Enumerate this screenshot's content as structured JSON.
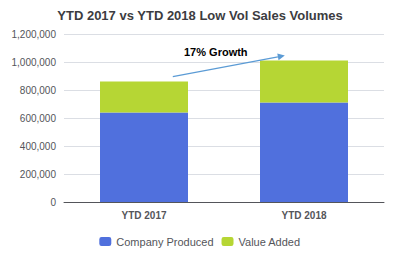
{
  "chart_data": {
    "type": "bar",
    "title": "YTD 2017 vs YTD 2018 Low Vol Sales Volumes",
    "categories": [
      "YTD 2017",
      "YTD 2018"
    ],
    "series": [
      {
        "name": "Company Produced",
        "values": [
          640000,
          710000
        ]
      },
      {
        "name": "Value Added",
        "values": [
          220000,
          300000
        ]
      }
    ],
    "stacked": true,
    "ylim": [
      0,
      1200000
    ],
    "yticks": [
      0,
      {
        "value": 200000,
        "label": "200,000"
      },
      {
        "value": 400000,
        "label": "400,000"
      },
      {
        "value": 600000,
        "label": "600,000"
      },
      {
        "value": 800000,
        "label": "800,000"
      },
      {
        "value": 1000000,
        "label": "1,000,000"
      },
      {
        "value": 1200000,
        "label": "1,200,000"
      }
    ],
    "annotation": "17% Growth",
    "grid": true,
    "legend": "bottom"
  }
}
